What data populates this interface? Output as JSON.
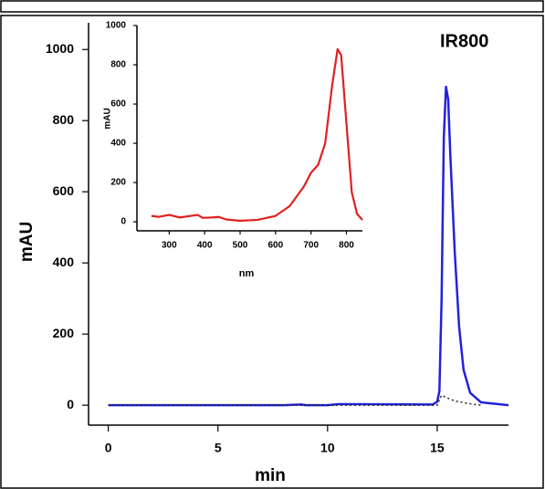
{
  "chart_data": [
    {
      "type": "line",
      "title": "IR800",
      "x_label": "min",
      "y_label": "mAU",
      "xlim": [
        -0.9,
        18.25
      ],
      "ylim": [
        -56,
        1075
      ],
      "xticks": [
        0,
        5,
        10,
        15
      ],
      "yticks": [
        0,
        200,
        400,
        600,
        800,
        1000
      ],
      "series": [
        {
          "color": "#2222dd",
          "style": "solid",
          "x": [
            0,
            8,
            8.8,
            9,
            10,
            10.5,
            14.8,
            15.0,
            15.1,
            15.2,
            15.3,
            15.4,
            15.5,
            15.6,
            15.8,
            16.0,
            16.2,
            16.5,
            17,
            18.25
          ],
          "values": [
            0,
            0,
            2,
            0,
            0,
            3,
            2,
            10,
            40,
            300,
            750,
            895,
            860,
            700,
            430,
            220,
            100,
            35,
            8,
            0
          ]
        },
        {
          "color": "#222222",
          "style": "dotted",
          "x": [
            0,
            8.8,
            8.9,
            9.0,
            15.0,
            15.1,
            15.2,
            15.4,
            15.8,
            16.4,
            17
          ],
          "values": [
            0,
            0,
            3,
            0,
            0,
            15,
            28,
            22,
            12,
            5,
            0
          ]
        }
      ]
    },
    {
      "type": "line",
      "x_label": "nm",
      "y_label": "mAU",
      "xlim": [
        209,
        845
      ],
      "ylim": [
        -46,
        1000
      ],
      "xticks": [
        300,
        400,
        500,
        600,
        700,
        800
      ],
      "yticks": [
        0,
        200,
        400,
        600,
        800,
        1000
      ],
      "series": [
        {
          "color": "#e02020",
          "style": "solid",
          "x": [
            250,
            270,
            300,
            330,
            360,
            380,
            395,
            420,
            440,
            460,
            500,
            550,
            600,
            640,
            680,
            700,
            720,
            740,
            760,
            775,
            785,
            800,
            815,
            830,
            845
          ],
          "values": [
            30,
            25,
            35,
            22,
            30,
            35,
            20,
            22,
            25,
            12,
            5,
            10,
            30,
            80,
            180,
            250,
            290,
            400,
            700,
            880,
            850,
            500,
            150,
            40,
            10
          ]
        }
      ]
    }
  ]
}
